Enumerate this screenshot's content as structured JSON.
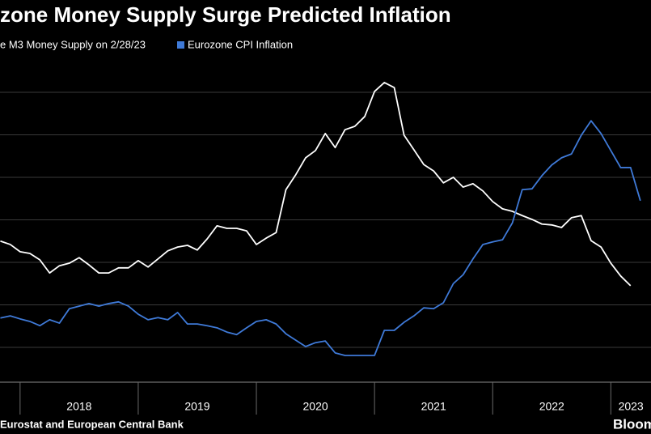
{
  "chart_data": {
    "type": "line",
    "title": "zone Money Supply Surge Predicted Inflation",
    "source": "Eurostat and European Central Bank",
    "brand": "Bloom",
    "x": [
      2017.833,
      2017.917,
      2018,
      2018.083,
      2018.167,
      2018.25,
      2018.333,
      2018.417,
      2018.5,
      2018.583,
      2018.667,
      2018.75,
      2018.833,
      2018.917,
      2019,
      2019.083,
      2019.167,
      2019.25,
      2019.333,
      2019.417,
      2019.5,
      2019.583,
      2019.667,
      2019.75,
      2019.833,
      2019.917,
      2020,
      2020.083,
      2020.167,
      2020.25,
      2020.333,
      2020.417,
      2020.5,
      2020.583,
      2020.667,
      2020.75,
      2020.833,
      2020.917,
      2021,
      2021.083,
      2021.167,
      2021.25,
      2021.333,
      2021.417,
      2021.5,
      2021.583,
      2021.667,
      2021.75,
      2021.833,
      2021.917,
      2022,
      2022.083,
      2022.167,
      2022.25,
      2022.333,
      2022.417,
      2022.5,
      2022.583,
      2022.667,
      2022.75,
      2022.833,
      2022.917,
      2023,
      2023.083,
      2023.167,
      2023.25
    ],
    "series": [
      {
        "name": "e M3 Money Supply on 2/28/23",
        "color": "#ffffff",
        "values": [
          3.5,
          3.42,
          3.25,
          3.21,
          3.06,
          2.75,
          2.92,
          2.98,
          3.11,
          2.94,
          2.75,
          2.75,
          2.87,
          2.87,
          3.04,
          2.89,
          3.08,
          3.27,
          3.36,
          3.4,
          3.29,
          3.55,
          3.86,
          3.8,
          3.8,
          3.74,
          3.42,
          3.57,
          3.7,
          4.71,
          5.06,
          5.46,
          5.63,
          6.03,
          5.7,
          6.12,
          6.2,
          6.43,
          7.02,
          7.23,
          7.11,
          5.99,
          5.65,
          5.3,
          5.15,
          4.87,
          5.0,
          4.77,
          4.85,
          4.68,
          4.43,
          4.26,
          4.2,
          4.1,
          4.01,
          3.9,
          3.88,
          3.82,
          4.05,
          4.1,
          3.51,
          3.36,
          2.98,
          2.68,
          2.45,
          null
        ]
      },
      {
        "name": "Eurozone CPI Inflation",
        "color": "#3f7ad8",
        "values": [
          1.69,
          1.74,
          1.67,
          1.61,
          1.51,
          1.65,
          1.57,
          1.91,
          1.97,
          2.03,
          1.97,
          2.03,
          2.07,
          1.97,
          1.78,
          1.65,
          1.7,
          1.65,
          1.82,
          1.55,
          1.55,
          1.51,
          1.46,
          1.36,
          1.3,
          1.46,
          1.61,
          1.65,
          1.55,
          1.32,
          1.17,
          1.02,
          1.11,
          1.15,
          0.87,
          0.81,
          0.81,
          0.81,
          0.81,
          1.4,
          1.4,
          1.59,
          1.74,
          1.93,
          1.91,
          2.05,
          2.5,
          2.71,
          3.08,
          3.42,
          3.48,
          3.53,
          3.93,
          4.71,
          4.73,
          5.04,
          5.29,
          5.46,
          5.55,
          5.99,
          6.33,
          6.03,
          5.63,
          5.23,
          5.23,
          4.45
        ]
      }
    ],
    "xlim": [
      2017.83,
      2023.34
    ],
    "xticks": [
      2018,
      2019,
      2020,
      2021,
      2022,
      2023
    ],
    "x_labels": [
      "2018",
      "2019",
      "2020",
      "2021",
      "2022",
      "2023"
    ],
    "ylim": [
      0.2,
      7.6
    ],
    "yticks": [
      1,
      2,
      3,
      4,
      5,
      6,
      7
    ],
    "grid": true
  }
}
